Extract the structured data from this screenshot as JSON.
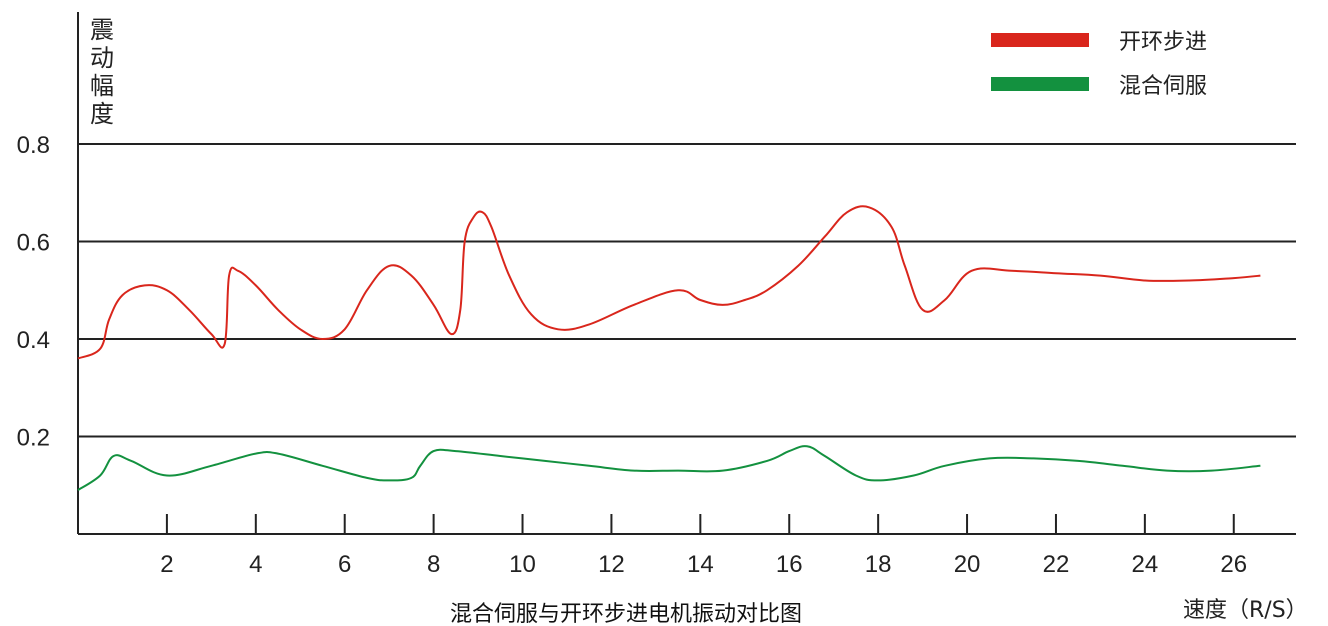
{
  "chart_data": {
    "type": "line",
    "title": "混合伺服与开环步进电机振动对比图",
    "xlabel": "速度（R/S）",
    "ylabel": [
      "震",
      "动",
      "幅",
      "度"
    ],
    "xlim": [
      0,
      27.4
    ],
    "ylim": [
      0,
      0.8
    ],
    "x_ticks": [
      2,
      4,
      6,
      8,
      10,
      12,
      14,
      16,
      18,
      20,
      22,
      24,
      26
    ],
    "y_ticks": [
      0.2,
      0.4,
      0.6,
      0.8
    ],
    "y_tick_labels": [
      "0.2",
      "0.4",
      "0.6",
      "0.8"
    ],
    "grid": "horizontal",
    "legend_position": "top-right",
    "series": [
      {
        "name": "开环步进",
        "color": "#d9261c",
        "x": [
          0,
          0.5,
          0.7,
          1.0,
          1.5,
          2.0,
          2.5,
          3.0,
          3.3,
          3.4,
          3.6,
          4.0,
          4.5,
          5.0,
          5.5,
          6.0,
          6.5,
          7.0,
          7.5,
          8.0,
          8.4,
          8.6,
          8.7,
          8.9,
          9.1,
          9.3,
          9.7,
          10.2,
          10.8,
          11.5,
          12.5,
          13.5,
          14.0,
          14.5,
          15.0,
          15.5,
          16.2,
          16.8,
          17.3,
          17.8,
          18.3,
          18.6,
          19.0,
          19.5,
          20.1,
          21.0,
          22.0,
          23.0,
          24.0,
          25.0,
          26.0,
          26.6
        ],
        "values": [
          0.36,
          0.38,
          0.44,
          0.49,
          0.51,
          0.5,
          0.46,
          0.41,
          0.39,
          0.53,
          0.54,
          0.51,
          0.46,
          0.42,
          0.4,
          0.42,
          0.5,
          0.55,
          0.53,
          0.47,
          0.41,
          0.46,
          0.6,
          0.65,
          0.66,
          0.63,
          0.53,
          0.45,
          0.42,
          0.43,
          0.47,
          0.5,
          0.48,
          0.47,
          0.48,
          0.5,
          0.55,
          0.61,
          0.66,
          0.67,
          0.63,
          0.55,
          0.46,
          0.48,
          0.54,
          0.54,
          0.535,
          0.53,
          0.52,
          0.52,
          0.525,
          0.53
        ]
      },
      {
        "name": "混合伺服",
        "color": "#13913f",
        "x": [
          0,
          0.5,
          0.8,
          1.2,
          2.0,
          3.0,
          4.0,
          4.5,
          5.5,
          6.5,
          7.0,
          7.5,
          7.7,
          8.0,
          8.5,
          9.5,
          10.5,
          11.5,
          12.5,
          13.5,
          14.5,
          15.5,
          16.0,
          16.4,
          16.8,
          17.5,
          18.0,
          18.8,
          19.5,
          20.5,
          21.5,
          22.5,
          23.5,
          24.5,
          25.5,
          26.6
        ],
        "values": [
          0.09,
          0.12,
          0.16,
          0.15,
          0.12,
          0.14,
          0.165,
          0.165,
          0.14,
          0.115,
          0.11,
          0.115,
          0.14,
          0.17,
          0.17,
          0.16,
          0.15,
          0.14,
          0.13,
          0.13,
          0.13,
          0.15,
          0.17,
          0.18,
          0.16,
          0.12,
          0.11,
          0.12,
          0.14,
          0.155,
          0.155,
          0.15,
          0.14,
          0.13,
          0.13,
          0.14
        ]
      }
    ]
  }
}
